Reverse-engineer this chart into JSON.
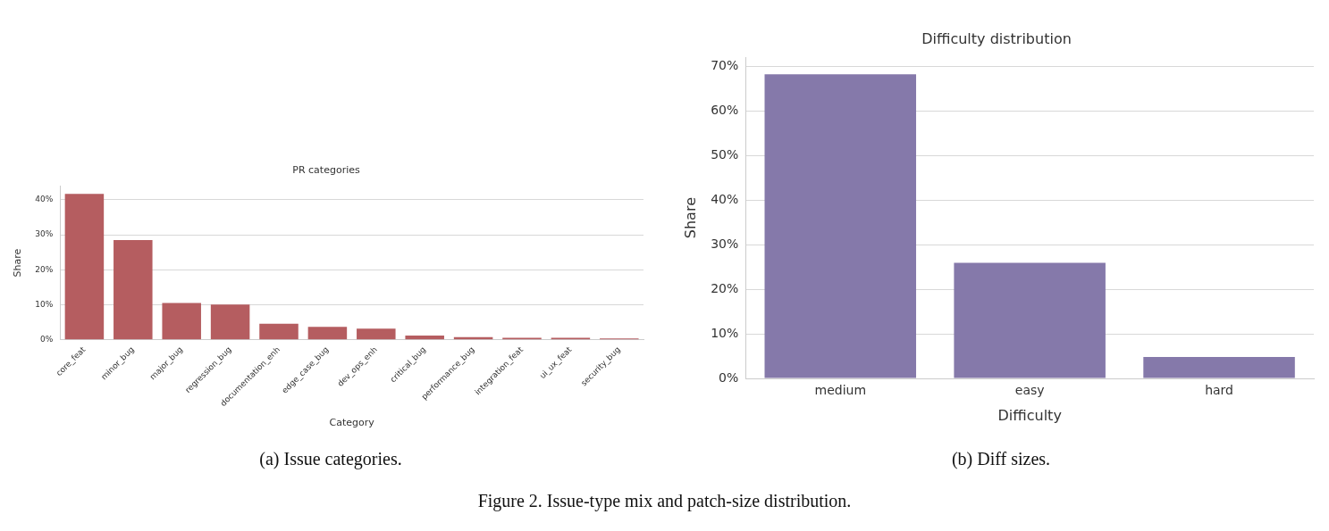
{
  "chart_data": [
    {
      "type": "bar",
      "title": "PR categories",
      "xlabel": "Category",
      "ylabel": "Share",
      "categories": [
        "core_feat",
        "minor_bug",
        "major_bug",
        "regression_bug",
        "documentation_enh",
        "edge_case_bug",
        "dev_ops_enh",
        "critical_bug",
        "performance_bug",
        "integration_feat",
        "ui_ux_feat",
        "security_bug"
      ],
      "values": [
        41.7,
        28.5,
        10.5,
        10.1,
        4.6,
        3.7,
        3.2,
        1.2,
        0.8,
        0.6,
        0.6,
        0.4
      ],
      "color": "#b55d60",
      "ylim": [
        0,
        44
      ],
      "yticks": [
        {
          "value": 0,
          "label": "0%"
        },
        {
          "value": 10,
          "label": "10%"
        },
        {
          "value": 20,
          "label": "20%"
        },
        {
          "value": 30,
          "label": "30%"
        },
        {
          "value": 40,
          "label": "40%"
        }
      ],
      "grid": "y",
      "annotations": [
        "(a) Issue categories."
      ]
    },
    {
      "type": "bar",
      "title": "Difficulty distribution",
      "xlabel": "Difficulty",
      "ylabel": "Share",
      "categories": [
        "medium",
        "easy",
        "hard"
      ],
      "values": [
        68.2,
        25.9,
        4.8
      ],
      "color": "#8579aa",
      "ylim": [
        0,
        72
      ],
      "yticks": [
        {
          "value": 0,
          "label": "0%"
        },
        {
          "value": 10,
          "label": "10%"
        },
        {
          "value": 20,
          "label": "20%"
        },
        {
          "value": 30,
          "label": "30%"
        },
        {
          "value": 40,
          "label": "40%"
        },
        {
          "value": 50,
          "label": "50%"
        },
        {
          "value": 60,
          "label": "60%"
        },
        {
          "value": 70,
          "label": "70%"
        }
      ],
      "grid": "y",
      "annotations": [
        "(b) Diff sizes.",
        "Figure 2. Issue-type mix and patch-size distribution."
      ]
    }
  ]
}
